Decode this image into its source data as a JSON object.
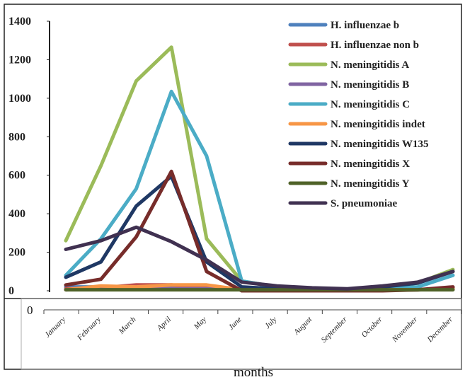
{
  "chart_data": {
    "type": "line",
    "title": "",
    "xlabel": "months",
    "ylabel": "",
    "ylim": [
      0,
      1400
    ],
    "yticks": [
      0,
      200,
      400,
      600,
      800,
      1000,
      1200,
      1400
    ],
    "lower_axis_tick": "0",
    "categories": [
      "January",
      "February",
      "March",
      "April",
      "May",
      "June",
      "July",
      "August",
      "September",
      "October",
      "November",
      "December"
    ],
    "legend_position": "top-right",
    "series": [
      {
        "name": "H. influenzae b",
        "color": "#4f81bd",
        "values": [
          20,
          20,
          20,
          25,
          20,
          5,
          5,
          5,
          5,
          5,
          5,
          10
        ]
      },
      {
        "name": "H. influenzae non b",
        "color": "#c0504d",
        "values": [
          10,
          15,
          30,
          30,
          15,
          5,
          5,
          5,
          5,
          5,
          5,
          15
        ]
      },
      {
        "name": "N. meningitidis A",
        "color": "#9bbb59",
        "values": [
          260,
          650,
          1090,
          1265,
          270,
          50,
          20,
          10,
          5,
          20,
          40,
          110
        ]
      },
      {
        "name": "N. meningitidis B",
        "color": "#8064a2",
        "values": [
          5,
          10,
          10,
          10,
          10,
          5,
          5,
          5,
          5,
          5,
          5,
          10
        ]
      },
      {
        "name": "N. meningitidis C",
        "color": "#4bacc6",
        "values": [
          80,
          270,
          530,
          1035,
          700,
          50,
          20,
          10,
          5,
          10,
          20,
          80
        ]
      },
      {
        "name": "N. meningitidis indet",
        "color": "#f79646",
        "values": [
          5,
          25,
          20,
          30,
          30,
          5,
          5,
          5,
          5,
          5,
          5,
          10
        ]
      },
      {
        "name": "N. meningitidis W135",
        "color": "#1f3864",
        "values": [
          70,
          150,
          440,
          595,
          150,
          20,
          10,
          5,
          5,
          20,
          40,
          100
        ]
      },
      {
        "name": "N. meningitidis X",
        "color": "#772c2a",
        "values": [
          30,
          60,
          280,
          620,
          100,
          0,
          0,
          0,
          0,
          0,
          5,
          20
        ]
      },
      {
        "name": "N. meningitidis Y",
        "color": "#4f6228",
        "values": [
          5,
          5,
          5,
          5,
          5,
          5,
          5,
          5,
          5,
          5,
          5,
          5
        ]
      },
      {
        "name": "S. pneumoniae",
        "color": "#403151",
        "values": [
          215,
          260,
          330,
          255,
          160,
          45,
          25,
          15,
          10,
          25,
          45,
          100
        ]
      }
    ]
  }
}
